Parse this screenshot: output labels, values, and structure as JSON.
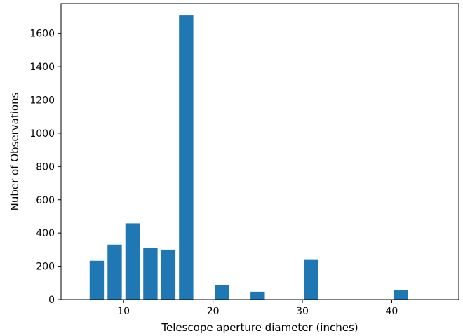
{
  "chart_data": {
    "type": "bar",
    "title": "",
    "xlabel": "Telescope aperture diameter (inches)",
    "ylabel": "Nuber of Observations",
    "xlim": [
      3,
      47.5
    ],
    "ylim": [
      0,
      1780
    ],
    "xticks": [
      10,
      20,
      30,
      40
    ],
    "yticks": [
      0,
      200,
      400,
      600,
      800,
      1000,
      1200,
      1400,
      1600
    ],
    "bar_width": 1.6,
    "bar_color": "#1f77b4",
    "grid": false,
    "legend": "none",
    "series": [
      {
        "x": [
          7,
          9,
          11,
          13,
          15,
          17,
          19,
          21,
          23,
          25,
          27,
          29,
          31,
          33,
          35,
          37,
          39,
          41,
          43,
          45
        ],
        "values": [
          233,
          330,
          458,
          310,
          300,
          1708,
          0,
          85,
          2,
          47,
          2,
          0,
          242,
          0,
          0,
          0,
          2,
          58,
          0,
          0
        ]
      }
    ]
  }
}
